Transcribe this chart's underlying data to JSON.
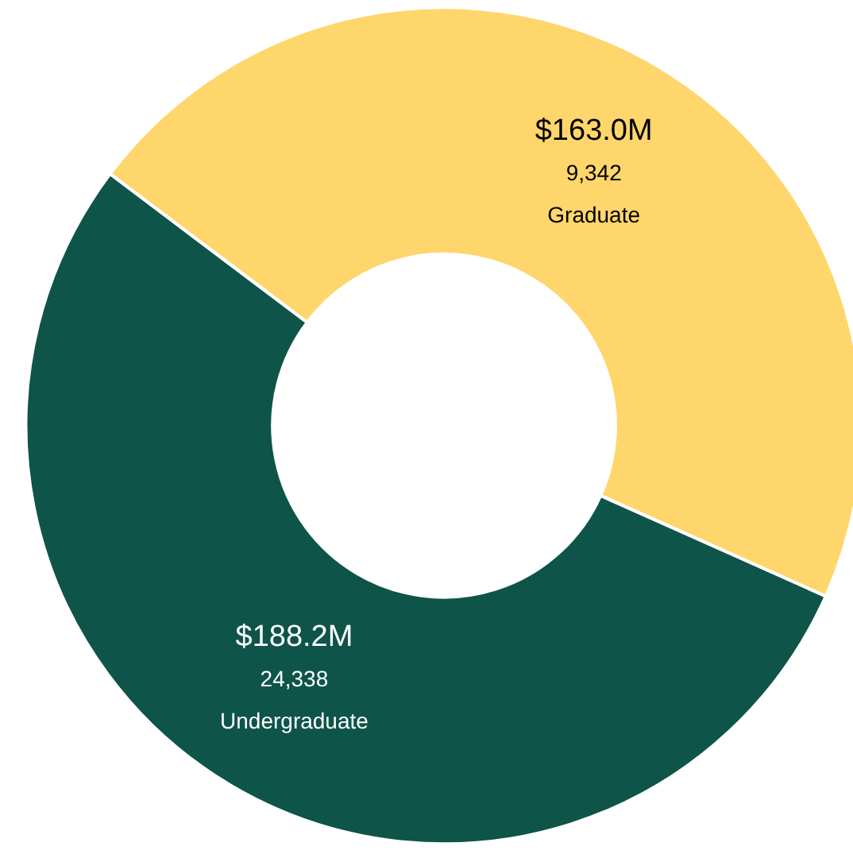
{
  "chart_data": {
    "type": "donut",
    "categories": [
      "Graduate",
      "Undergraduate"
    ],
    "values": [
      163.0,
      188.2
    ],
    "colors": [
      "#fed66b",
      "#0e5449"
    ],
    "value_labels": [
      "$163.0M",
      "$188.2M"
    ],
    "annotations": [
      "9,342",
      "24,338"
    ]
  }
}
